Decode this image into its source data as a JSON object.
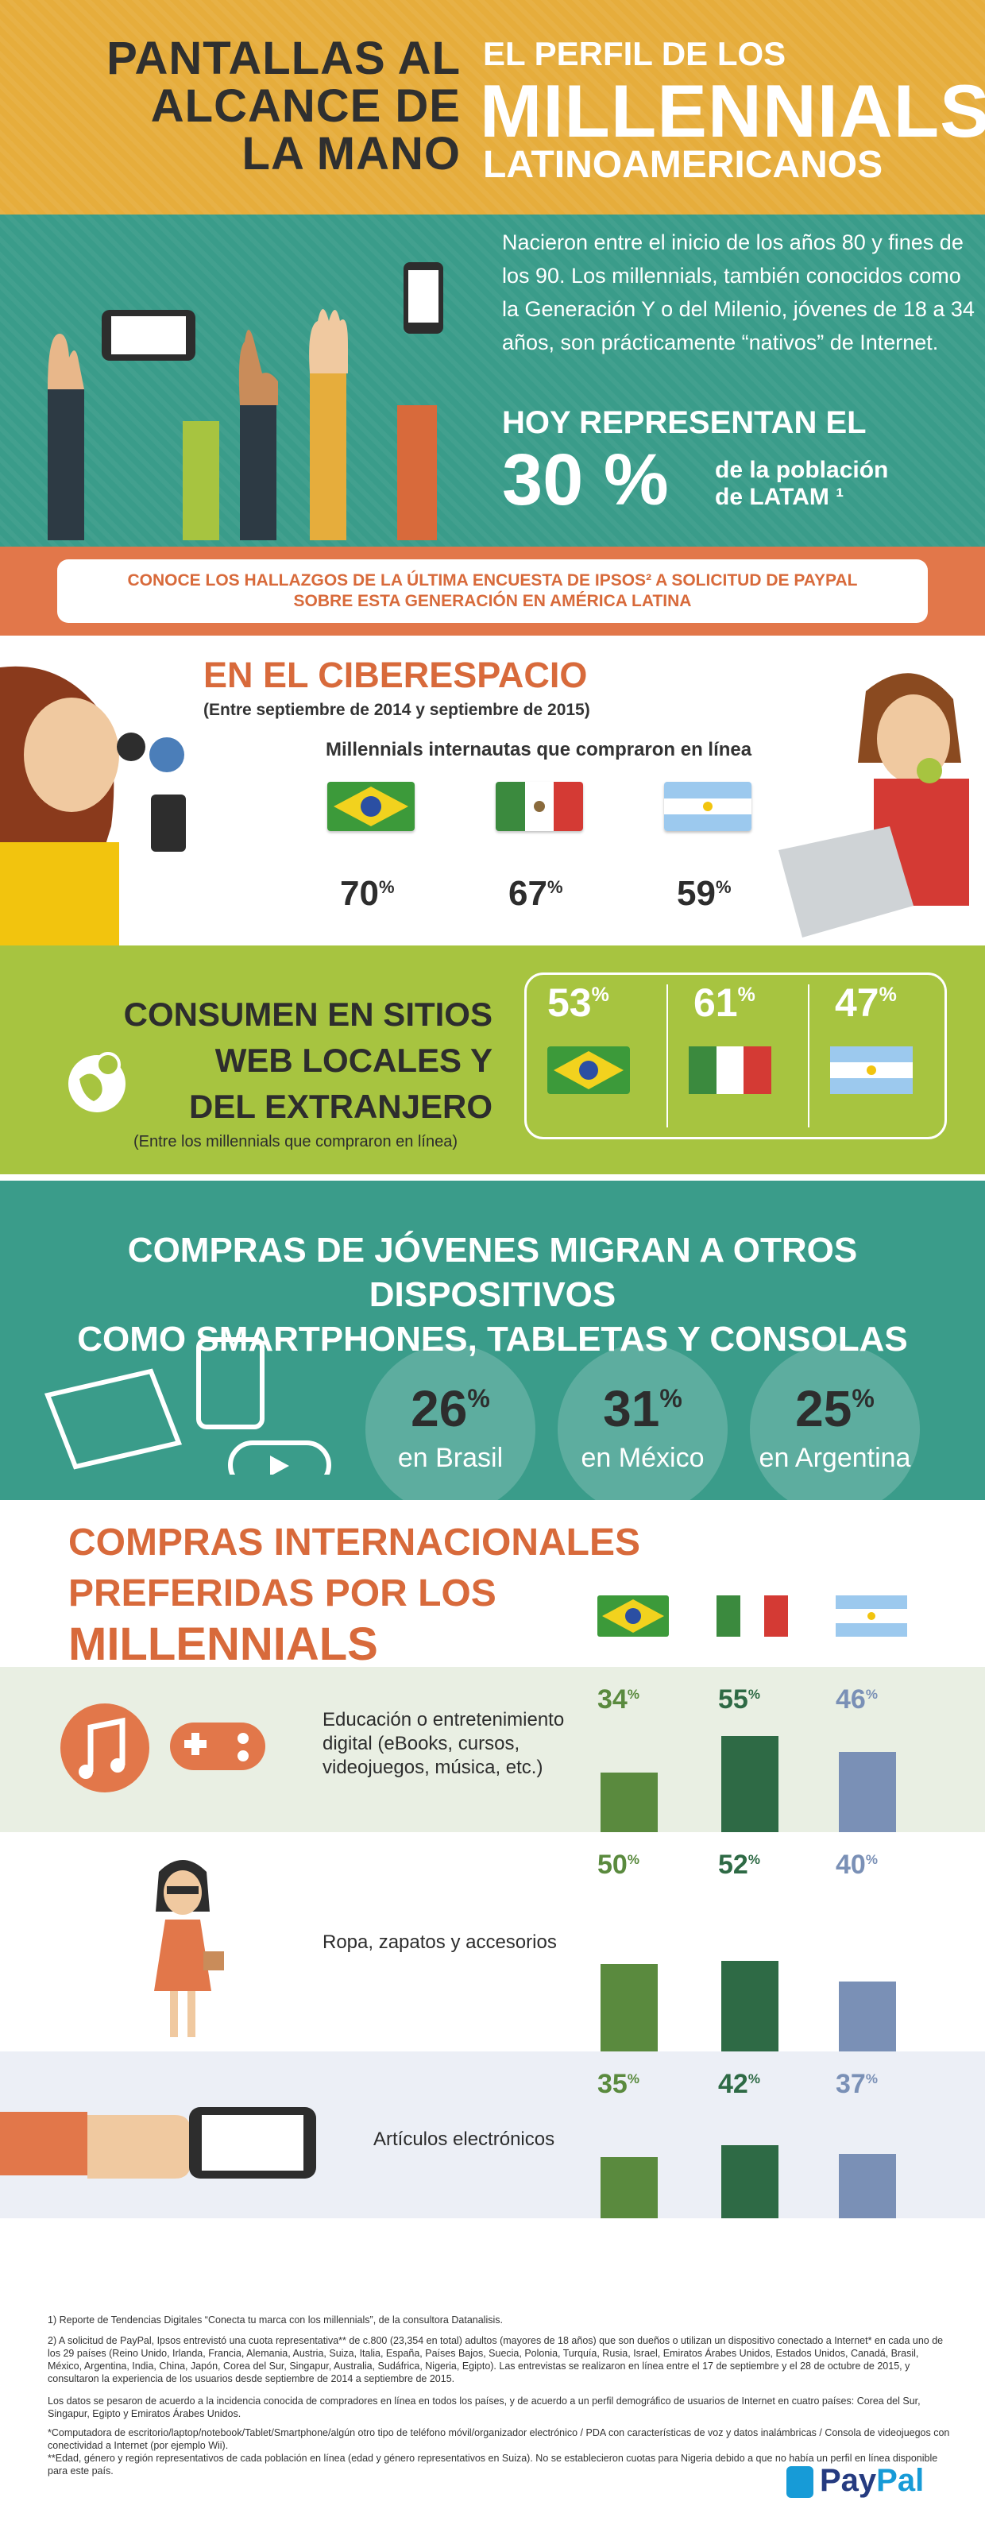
{
  "header": {
    "left_lines": [
      "PANTALLAS AL",
      "ALCANCE DE",
      "LA MANO"
    ],
    "right_line1": "EL PERFIL DE LOS",
    "right_line2": "MILLENNIALS",
    "right_line3": "LATINOAMERICANOS"
  },
  "intro": {
    "description": "Nacieron entre el inicio de los años 80 y fines de los 90. Los millennials, también conocidos como la Generación Y o del Milenio, jóvenes de 18 a 34 años, son prácticamente “nativos” de Internet.",
    "hoy": "HOY REPRESENTAN EL",
    "percent": "30 %",
    "poblacion_1": "de la población",
    "poblacion_2": "de LATAM ¹",
    "banner_1": "CONOCE LOS HALLAZGOS DE LA ÚLTIMA ENCUESTA DE IPSOS² A SOLICITUD DE PAYPAL",
    "banner_2": "SOBRE ESTA GENERACIÓN EN AMÉRICA LATINA"
  },
  "ciberespacio": {
    "title": "EN EL CIBERESPACIO",
    "subtitle": "(Entre septiembre de 2014 y septiembre de 2015)",
    "label": "Millennials internautas que compraron en línea",
    "values": [
      {
        "num": "70",
        "sup": "%"
      },
      {
        "num": "67",
        "sup": "%"
      },
      {
        "num": "59",
        "sup": "%"
      }
    ]
  },
  "consumen": {
    "title_lines": [
      "CONSUMEN EN SITIOS",
      "WEB LOCALES Y",
      "DEL EXTRANJERO"
    ],
    "subtitle": "(Entre los millennials que compraron en línea)",
    "values": [
      {
        "num": "53",
        "sup": "%"
      },
      {
        "num": "61",
        "sup": "%"
      },
      {
        "num": "47",
        "sup": "%"
      }
    ]
  },
  "compras": {
    "title_1": "COMPRAS DE JÓVENES MIGRAN A OTROS DISPOSITIVOS",
    "title_2": "COMO SMARTPHONES, TABLETAS Y CONSOLAS",
    "circles": [
      {
        "num": "26",
        "sup": "%",
        "label": "en Brasil"
      },
      {
        "num": "31",
        "sup": "%",
        "label": "en México"
      },
      {
        "num": "25",
        "sup": "%",
        "label": "en Argentina"
      }
    ]
  },
  "preferidas": {
    "title_lines": [
      "COMPRAS INTERNACIONALES",
      "PREFERIDAS POR LOS",
      "MILLENNIALS"
    ],
    "rows": [
      {
        "label": "Educación o entretenimiento digital (eBooks, cursos, videojuegos, música, etc.)",
        "values": [
          {
            "num": "34",
            "sup": "%"
          },
          {
            "num": "55",
            "sup": "%"
          },
          {
            "num": "46",
            "sup": "%"
          }
        ]
      },
      {
        "label": "Ropa, zapatos y accesorios",
        "values": [
          {
            "num": "50",
            "sup": "%"
          },
          {
            "num": "52",
            "sup": "%"
          },
          {
            "num": "40",
            "sup": "%"
          }
        ]
      },
      {
        "label": "Artículos  electrónicos",
        "values": [
          {
            "num": "35",
            "sup": "%"
          },
          {
            "num": "42",
            "sup": "%"
          },
          {
            "num": "37",
            "sup": "%"
          }
        ]
      }
    ],
    "colors": [
      "#5a8a3e",
      "#2e6a45",
      "#7a90b6"
    ]
  },
  "footnotes": [
    "1) Reporte de Tendencias Digitales “Conecta tu marca con los millennials”, de la consultora Datanalisis.",
    "2) A solicitud de PayPal, Ipsos entrevistó una cuota representativa** de c.800 (23,354 en total) adultos (mayores de 18 años) que son dueños o utilizan un dispositivo conectado a Internet* en cada uno de los 29 países (Reino Unido, Irlanda, Francia, Alemania, Austria, Suiza, Italia, España, Países Bajos, Suecia, Polonia, Turquía, Rusia, Israel, Emiratos Árabes Unidos, Estados Unidos, Canadá, Brasil, México, Argentina, India, China, Japón, Corea del Sur, Singapur, Australia, Sudáfrica, Nigeria, Egipto). Las entrevistas se realizaron en línea entre el 17 de septiembre y el 28 de octubre de 2015, y consultaron la experiencia de los usuarios desde septiembre de 2014 a septiembre de 2015.",
    "Los datos se pesaron de acuerdo a la incidencia conocida de compradores en línea en todos los países, y de acuerdo a un perfil demográfico de usuarios de Internet en cuatro países: Corea del Sur, Singapur, Egipto y Emiratos Árabes Unidos.",
    "*Computadora de escritorio/laptop/notebook/Tablet/Smartphone/algún otro tipo de teléfono móvil/organizador electrónico / PDA con características de voz y datos inalámbricas / Consola de videojuegos con conectividad a Internet (por ejemplo Wii).\n**Edad, género y región representativos de cada población en línea (edad y género representativos en Suiza). No se establecieron cuotas para Nigeria debido a que no había un perfil en línea disponible para este país."
  ],
  "brand": {
    "pay": "Pay",
    "pal": "Pal"
  }
}
